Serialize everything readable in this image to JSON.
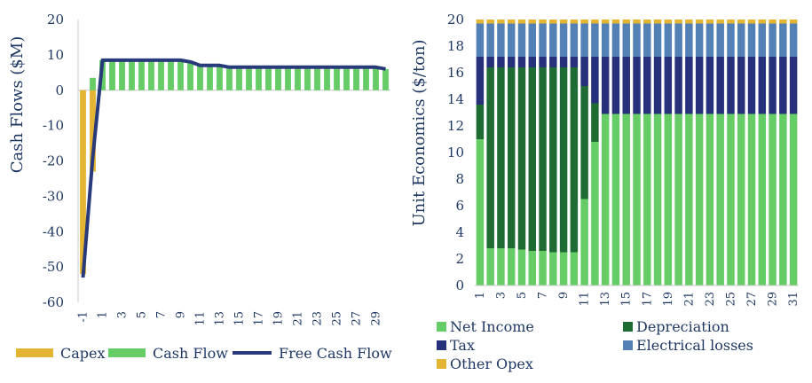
{
  "chart_data": [
    {
      "type": "bar",
      "title": "",
      "xlabel": "",
      "ylabel": "Cash Flows ($M)",
      "ylim": [
        -60,
        20
      ],
      "yticks": [
        "20",
        "10",
        "0",
        "-10",
        "-20",
        "-30",
        "-40",
        "-50",
        "-60"
      ],
      "categories": [
        "-1",
        "0",
        "1",
        "2",
        "3",
        "4",
        "5",
        "6",
        "7",
        "8",
        "9",
        "10",
        "11",
        "12",
        "13",
        "14",
        "15",
        "16",
        "17",
        "18",
        "19",
        "20",
        "21",
        "22",
        "23",
        "24",
        "25",
        "26",
        "27",
        "28",
        "29",
        "30"
      ],
      "xtick_labels": [
        "-1",
        "1",
        "3",
        "5",
        "7",
        "9",
        "11",
        "13",
        "15",
        "17",
        "19",
        "21",
        "23",
        "25",
        "27",
        "29"
      ],
      "series": [
        {
          "name": "Capex",
          "kind": "bar",
          "color": "#e3b532",
          "values": [
            -52,
            -23,
            0,
            0,
            0,
            0,
            0,
            0,
            0,
            0,
            0,
            0,
            0,
            0,
            0,
            0,
            0,
            0,
            0,
            0,
            0,
            0,
            0,
            0,
            0,
            0,
            0,
            0,
            0,
            0,
            0,
            0
          ]
        },
        {
          "name": "Cash Flow",
          "kind": "bar",
          "color": "#66cc66",
          "values": [
            0,
            3.5,
            8.5,
            8.5,
            8.5,
            8.5,
            8.5,
            8.5,
            8.5,
            8.5,
            8.5,
            8,
            7,
            7,
            7,
            6.5,
            6.5,
            6.5,
            6.5,
            6.5,
            6.5,
            6.5,
            6.5,
            6.5,
            6.5,
            6.5,
            6.5,
            6.5,
            6.5,
            6.5,
            6.5,
            6
          ]
        },
        {
          "name": "Free Cash Flow",
          "kind": "line",
          "color": "#283a7a",
          "values": [
            -53,
            -19,
            8.5,
            8.5,
            8.5,
            8.5,
            8.5,
            8.5,
            8.5,
            8.5,
            8.5,
            8,
            7,
            7,
            7,
            6.5,
            6.5,
            6.5,
            6.5,
            6.5,
            6.5,
            6.5,
            6.5,
            6.5,
            6.5,
            6.5,
            6.5,
            6.5,
            6.5,
            6.5,
            6.5,
            6
          ]
        }
      ],
      "legend": [
        "Capex",
        "Cash Flow",
        "Free Cash Flow"
      ],
      "legend_position": "bottom",
      "grid": false
    },
    {
      "type": "bar",
      "stacked": true,
      "title": "",
      "xlabel": "",
      "ylabel": "Unit Economics ($/ton)",
      "ylim": [
        0,
        20
      ],
      "yticks": [
        "20",
        "18",
        "16",
        "14",
        "12",
        "10",
        "8",
        "6",
        "4",
        "2",
        "0"
      ],
      "categories": [
        "1",
        "2",
        "3",
        "4",
        "5",
        "6",
        "7",
        "8",
        "9",
        "10",
        "11",
        "12",
        "13",
        "14",
        "15",
        "16",
        "17",
        "18",
        "19",
        "20",
        "21",
        "22",
        "23",
        "24",
        "25",
        "26",
        "27",
        "28",
        "29",
        "30",
        "31"
      ],
      "xtick_labels": [
        "1",
        "3",
        "5",
        "7",
        "9",
        "11",
        "13",
        "15",
        "17",
        "19",
        "21",
        "23",
        "25",
        "27",
        "29",
        "31"
      ],
      "series": [
        {
          "name": "Net Income",
          "color": "#66cc66",
          "values": [
            11,
            2.8,
            2.8,
            2.8,
            2.7,
            2.6,
            2.6,
            2.5,
            2.5,
            2.5,
            6.5,
            10.8,
            12.9,
            12.9,
            12.9,
            12.9,
            12.9,
            12.9,
            12.9,
            12.9,
            12.9,
            12.9,
            12.9,
            12.9,
            12.9,
            12.9,
            12.9,
            12.9,
            12.9,
            12.9,
            12.9
          ]
        },
        {
          "name": "Depreciation",
          "color": "#1e6b34",
          "values": [
            2.6,
            13.6,
            13.6,
            13.6,
            13.7,
            13.8,
            13.8,
            13.9,
            13.9,
            13.9,
            8.5,
            2.9,
            0,
            0,
            0,
            0,
            0,
            0,
            0,
            0,
            0,
            0,
            0,
            0,
            0,
            0,
            0,
            0,
            0,
            0,
            0
          ]
        },
        {
          "name": "Tax",
          "color": "#27307a",
          "values": [
            3.6,
            0.8,
            0.8,
            0.8,
            0.8,
            0.8,
            0.8,
            0.8,
            0.8,
            0.8,
            2.2,
            3.5,
            4.3,
            4.3,
            4.3,
            4.3,
            4.3,
            4.3,
            4.3,
            4.3,
            4.3,
            4.3,
            4.3,
            4.3,
            4.3,
            4.3,
            4.3,
            4.3,
            4.3,
            4.3,
            4.3
          ]
        },
        {
          "name": "Electrical losses",
          "color": "#5380b5",
          "values": [
            2.5,
            2.5,
            2.5,
            2.5,
            2.5,
            2.5,
            2.5,
            2.5,
            2.5,
            2.5,
            2.5,
            2.5,
            2.5,
            2.5,
            2.5,
            2.5,
            2.5,
            2.5,
            2.5,
            2.5,
            2.5,
            2.5,
            2.5,
            2.5,
            2.5,
            2.5,
            2.5,
            2.5,
            2.5,
            2.5,
            2.5
          ]
        },
        {
          "name": "Other Opex",
          "color": "#e3b532",
          "values": [
            0.3,
            0.3,
            0.3,
            0.3,
            0.3,
            0.3,
            0.3,
            0.3,
            0.3,
            0.3,
            0.3,
            0.3,
            0.3,
            0.3,
            0.3,
            0.3,
            0.3,
            0.3,
            0.3,
            0.3,
            0.3,
            0.3,
            0.3,
            0.3,
            0.3,
            0.3,
            0.3,
            0.3,
            0.3,
            0.3,
            0.3
          ]
        }
      ],
      "legend": [
        "Net Income",
        "Depreciation",
        "Tax",
        "Electrical losses",
        "Other Opex"
      ],
      "legend_position": "bottom",
      "grid": false
    }
  ]
}
